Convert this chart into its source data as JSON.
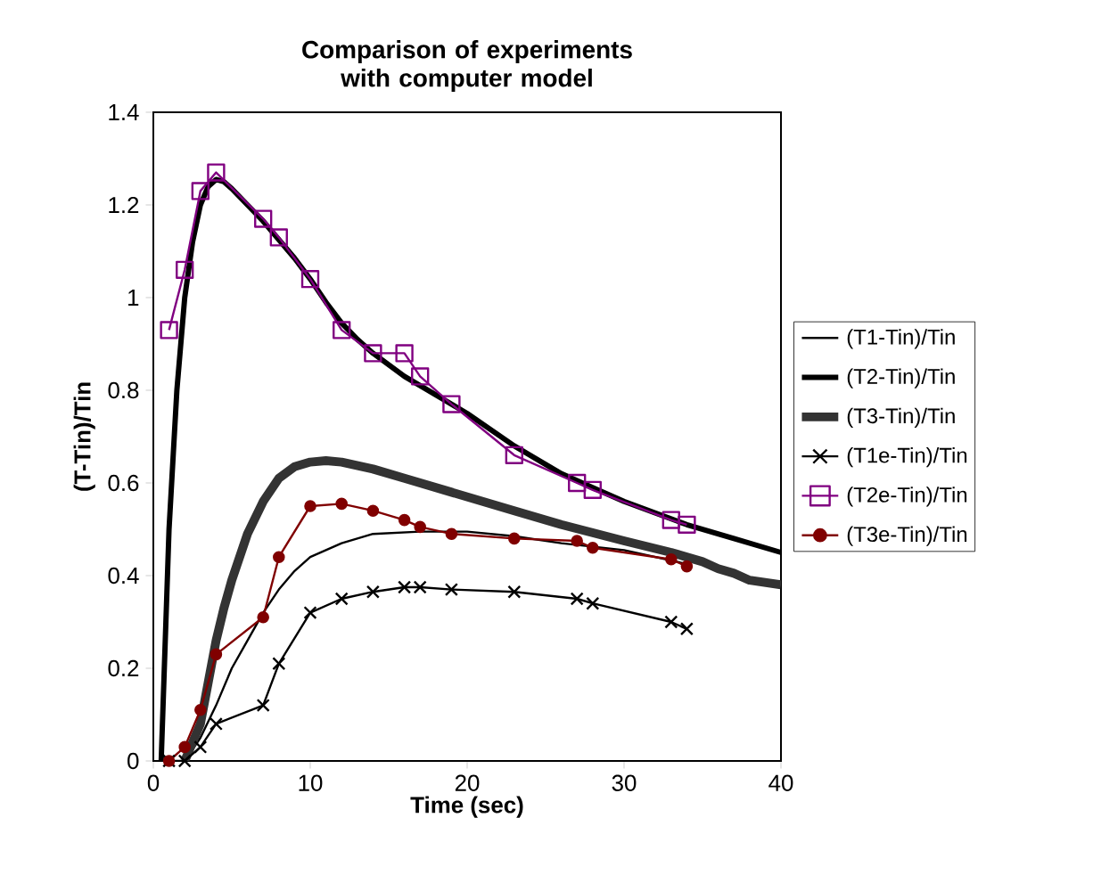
{
  "chart_data": {
    "type": "line",
    "title": "Comparison of experiments with computer model",
    "xlabel": "Time (sec)",
    "ylabel": "(T-Tin)/Tin",
    "xlim": [
      0,
      40
    ],
    "xticks": [
      0,
      10,
      20,
      30,
      40
    ],
    "ylim": [
      0,
      1.4
    ],
    "yticks": [
      0,
      0.2,
      0.4,
      0.6,
      0.8,
      1,
      1.2,
      1.4
    ],
    "legend": "right",
    "series": [
      {
        "name": "(T1-Tin)/Tin",
        "color": "#000000",
        "marker": "none",
        "x": [
          2,
          3,
          4,
          5,
          6,
          7,
          8,
          9,
          10,
          12,
          14,
          17,
          20,
          23,
          26,
          30,
          34
        ],
        "values": [
          0,
          0.05,
          0.12,
          0.2,
          0.26,
          0.32,
          0.37,
          0.41,
          0.44,
          0.47,
          0.49,
          0.495,
          0.495,
          0.485,
          0.47,
          0.455,
          0.425
        ]
      },
      {
        "name": "(T2-Tin)/Tin",
        "color": "#000000",
        "marker": "none",
        "x": [
          0.5,
          0.8,
          1,
          1.5,
          2,
          2.5,
          3,
          3.5,
          4,
          4.5,
          5,
          6,
          7,
          8,
          9,
          10,
          11,
          12,
          13,
          14,
          16,
          18,
          20,
          23,
          26,
          28,
          30,
          32,
          34,
          37,
          40
        ],
        "values": [
          0,
          0.3,
          0.5,
          0.8,
          1.0,
          1.12,
          1.2,
          1.24,
          1.255,
          1.25,
          1.235,
          1.2,
          1.165,
          1.125,
          1.085,
          1.04,
          0.99,
          0.945,
          0.91,
          0.88,
          0.83,
          0.79,
          0.75,
          0.68,
          0.62,
          0.59,
          0.56,
          0.535,
          0.51,
          0.48,
          0.45
        ]
      },
      {
        "name": "(T3-Tin)/Tin",
        "color": "#333333",
        "marker": "none",
        "x": [
          2,
          3,
          3.5,
          4,
          4.5,
          5,
          6,
          7,
          8,
          9,
          10,
          11,
          12,
          14,
          16,
          19,
          23,
          26,
          30,
          33,
          35,
          36,
          37,
          38,
          40
        ],
        "values": [
          0,
          0.08,
          0.17,
          0.26,
          0.33,
          0.39,
          0.49,
          0.56,
          0.61,
          0.635,
          0.645,
          0.648,
          0.645,
          0.63,
          0.61,
          0.58,
          0.54,
          0.51,
          0.475,
          0.45,
          0.43,
          0.415,
          0.405,
          0.39,
          0.38
        ]
      },
      {
        "name": "(T1e-Tin)/Tin",
        "color": "#000000",
        "marker": "cross",
        "x": [
          1,
          2,
          3,
          4,
          7,
          8,
          10,
          12,
          14,
          16,
          17,
          19,
          23,
          27,
          28,
          33,
          34
        ],
        "values": [
          0,
          0,
          0.03,
          0.08,
          0.12,
          0.21,
          0.32,
          0.35,
          0.365,
          0.375,
          0.375,
          0.37,
          0.365,
          0.35,
          0.34,
          0.3,
          0.285
        ]
      },
      {
        "name": "(T2e-Tin)/Tin",
        "color": "#800080",
        "marker": "square",
        "x": [
          1,
          2,
          3,
          4,
          7,
          8,
          10,
          12,
          14,
          16,
          17,
          19,
          23,
          27,
          28,
          33,
          34
        ],
        "values": [
          0.93,
          1.06,
          1.23,
          1.27,
          1.17,
          1.13,
          1.04,
          0.93,
          0.88,
          0.88,
          0.83,
          0.77,
          0.66,
          0.6,
          0.585,
          0.52,
          0.51
        ]
      },
      {
        "name": "(T3e-Tin)/Tin",
        "color": "#800000",
        "marker": "circle",
        "x": [
          1,
          2,
          3,
          4,
          7,
          8,
          10,
          12,
          14,
          16,
          17,
          19,
          23,
          27,
          28,
          33,
          34
        ],
        "values": [
          0,
          0.03,
          0.11,
          0.23,
          0.31,
          0.44,
          0.55,
          0.555,
          0.54,
          0.52,
          0.505,
          0.49,
          0.48,
          0.475,
          0.46,
          0.435,
          0.42
        ]
      }
    ]
  }
}
